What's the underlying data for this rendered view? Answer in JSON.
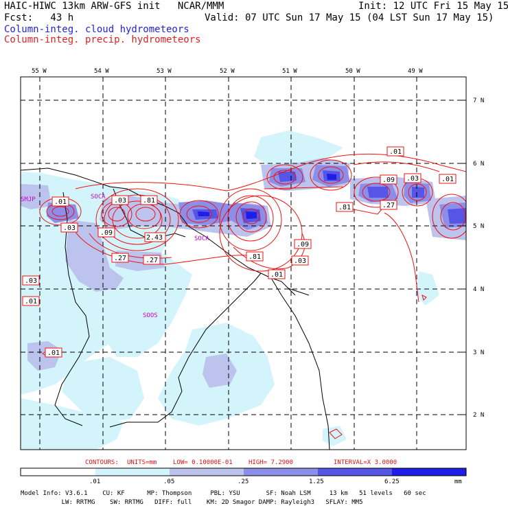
{
  "header": {
    "model_line": "HAIC-HIWC 13km ARW-GFS init   NCAR/MMM",
    "init_line": "Init: 12 UTC Fri 15 May 15",
    "fcst_line": "Fcst:   43 h",
    "valid_line": "Valid: 07 UTC Sun 17 May 15 (04 LST Sun 17 May 15)",
    "field1": "Column-integ. cloud hydrometeors",
    "field2": "Column-integ. precip. hydrometeors",
    "field1_color": "#2222dd",
    "field2_color": "#dd2222"
  },
  "map": {
    "lon_labels": [
      "55 W",
      "54 W",
      "53 W",
      "52 W",
      "51 W",
      "50 W",
      "49 W"
    ],
    "lat_labels": [
      "7 N",
      "6 N",
      "5 N",
      "4 N",
      "3 N",
      "2 N"
    ],
    "stations": [
      "SMJP",
      "SOCA",
      "SOCA",
      "SOOS"
    ],
    "contour_labels": [
      ".01",
      ".03",
      ".03",
      ".81",
      ".09",
      "2.43",
      ".27",
      ".27",
      ".03",
      ".01",
      ".81",
      ".09",
      ".03",
      ".01",
      ".81",
      ".01",
      ".09",
      ".03",
      ".27",
      ".01",
      ".01"
    ]
  },
  "contour_info": {
    "contours": "CONTOURS:",
    "units": "UNITS=mm",
    "low": "LOW= 0.10000E-01",
    "high": "HIGH=  7.2900",
    "interval": "INTERVAL=X  3.0000"
  },
  "colorbar": {
    "ticks": [
      ".01",
      ".05",
      ".25",
      "1.25",
      "6.25"
    ],
    "unit": "mm",
    "colors": [
      "#ffffff",
      "#d4f4fb",
      "#bcc4ee",
      "#8d8ee8",
      "#5555e6",
      "#1e1ee4"
    ]
  },
  "model_info": {
    "line1": "Model Info: V3.6.1    CU: KF      MP: Thompson     PBL: YSU       SF: Noah LSM     13 km   51 levels   60 sec",
    "line2": "           LW: RRTMG    SW: RRTMG   DIFF: full    KM: 2D Smagor DAMP: Rayleigh3   SFLAY: MM5"
  }
}
